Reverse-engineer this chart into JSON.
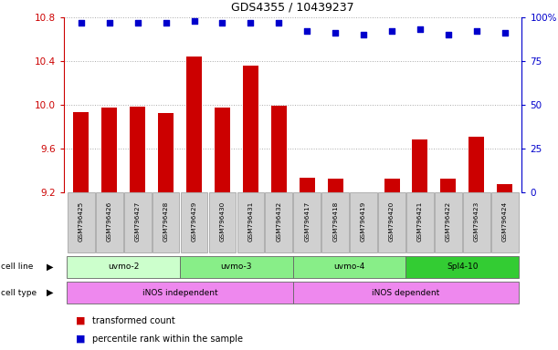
{
  "title": "GDS4355 / 10439237",
  "samples": [
    "GSM796425",
    "GSM796426",
    "GSM796427",
    "GSM796428",
    "GSM796429",
    "GSM796430",
    "GSM796431",
    "GSM796432",
    "GSM796417",
    "GSM796418",
    "GSM796419",
    "GSM796420",
    "GSM796421",
    "GSM796422",
    "GSM796423",
    "GSM796424"
  ],
  "transformed_counts": [
    9.93,
    9.97,
    9.98,
    9.92,
    10.44,
    9.97,
    10.36,
    9.99,
    9.33,
    9.32,
    9.2,
    9.32,
    9.68,
    9.32,
    9.71,
    9.27
  ],
  "percentile_ranks": [
    97,
    97,
    97,
    97,
    98,
    97,
    97,
    97,
    92,
    91,
    90,
    92,
    93,
    90,
    92,
    91
  ],
  "ylim_left": [
    9.2,
    10.8
  ],
  "ylim_right": [
    0,
    100
  ],
  "yticks_left": [
    9.2,
    9.6,
    10.0,
    10.4,
    10.8
  ],
  "yticks_right": [
    0,
    25,
    50,
    75,
    100
  ],
  "bar_color": "#cc0000",
  "dot_color": "#0000cc",
  "cell_lines": [
    {
      "label": "uvmo-2",
      "start": 0,
      "end": 4,
      "color": "#ccffcc"
    },
    {
      "label": "uvmo-3",
      "start": 4,
      "end": 8,
      "color": "#88ee88"
    },
    {
      "label": "uvmo-4",
      "start": 8,
      "end": 12,
      "color": "#88ee88"
    },
    {
      "label": "Spl4-10",
      "start": 12,
      "end": 16,
      "color": "#33cc33"
    }
  ],
  "cell_types": [
    {
      "label": "iNOS independent",
      "start": 0,
      "end": 8
    },
    {
      "label": "iNOS dependent",
      "start": 8,
      "end": 16
    }
  ],
  "cell_type_color": "#ee88ee",
  "legend_bar_label": "transformed count",
  "legend_dot_label": "percentile rank within the sample",
  "dotted_grid_color": "#aaaaaa",
  "axis_color_left": "#cc0000",
  "axis_color_right": "#0000cc",
  "sample_box_color": "#d0d0d0",
  "chart_bg": "#ffffff"
}
